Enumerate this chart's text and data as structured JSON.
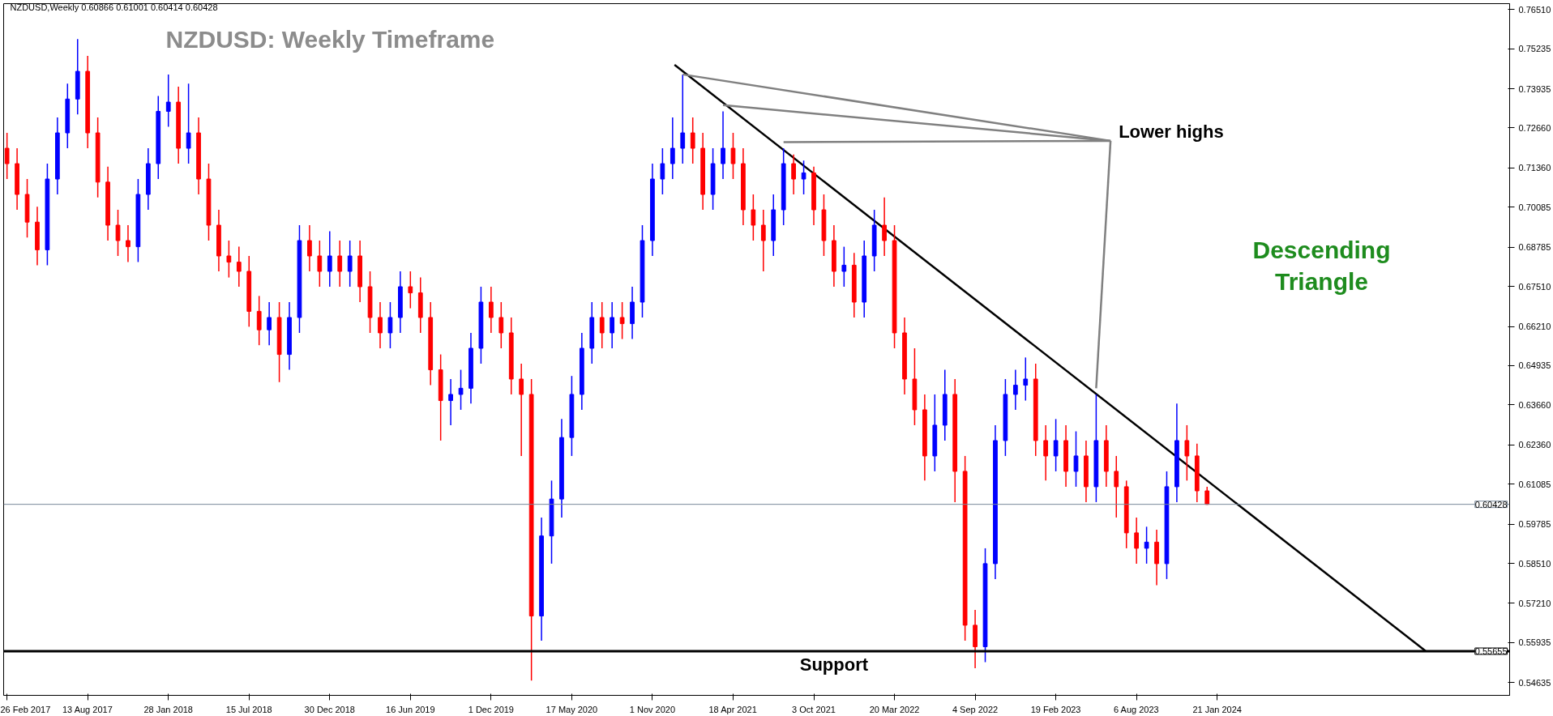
{
  "chart_data": {
    "type": "candlestick",
    "title": "NZDUSD: Weekly Timeframe",
    "subtitle": "NZDUSD,Weekly 0.60866 0.61001 0.60414 0.60428",
    "x": [
      "2017-02-26",
      "2017-03-19",
      "2017-04-09",
      "2017-04-30",
      "2017-05-21",
      "2017-06-11",
      "2017-07-02",
      "2017-07-23",
      "2017-08-13",
      "2017-09-03",
      "2017-09-24",
      "2017-10-15",
      "2017-11-05",
      "2017-11-26",
      "2017-12-17",
      "2018-01-07",
      "2018-01-28",
      "2018-02-18",
      "2018-03-11",
      "2018-04-01",
      "2018-04-22",
      "2018-05-13",
      "2018-06-03",
      "2018-06-24",
      "2018-07-15",
      "2018-08-05",
      "2018-08-26",
      "2018-09-16",
      "2018-10-07",
      "2018-10-28",
      "2018-11-18",
      "2018-12-09",
      "2018-12-30",
      "2019-01-20",
      "2019-02-10",
      "2019-03-03",
      "2019-03-24",
      "2019-04-14",
      "2019-05-05",
      "2019-05-26",
      "2019-06-16",
      "2019-07-07",
      "2019-07-28",
      "2019-08-18",
      "2019-09-08",
      "2019-09-29",
      "2019-10-20",
      "2019-11-10",
      "2019-12-01",
      "2019-12-22",
      "2020-01-12",
      "2020-02-02",
      "2020-02-23",
      "2020-03-15",
      "2020-04-05",
      "2020-04-26",
      "2020-05-17",
      "2020-06-07",
      "2020-06-28",
      "2020-07-19",
      "2020-08-09",
      "2020-08-30",
      "2020-09-20",
      "2020-10-11",
      "2020-11-01",
      "2020-11-22",
      "2020-12-13",
      "2021-01-03",
      "2021-01-24",
      "2021-02-14",
      "2021-03-07",
      "2021-03-28",
      "2021-04-18",
      "2021-05-09",
      "2021-05-30",
      "2021-06-20",
      "2021-07-11",
      "2021-08-01",
      "2021-08-22",
      "2021-09-12",
      "2021-10-03",
      "2021-10-24",
      "2021-11-14",
      "2021-12-05",
      "2021-12-26",
      "2022-01-16",
      "2022-02-06",
      "2022-02-27",
      "2022-03-20",
      "2022-04-10",
      "2022-05-01",
      "2022-05-22",
      "2022-06-12",
      "2022-07-03",
      "2022-07-24",
      "2022-08-14",
      "2022-09-04",
      "2022-09-25",
      "2022-10-16",
      "2022-11-06",
      "2022-11-27",
      "2022-12-18",
      "2023-01-08",
      "2023-01-29",
      "2023-02-19",
      "2023-03-12",
      "2023-04-02",
      "2023-04-23",
      "2023-05-14",
      "2023-06-04",
      "2023-06-25",
      "2023-07-16",
      "2023-08-06",
      "2023-08-27",
      "2023-09-17",
      "2023-10-08",
      "2023-10-29",
      "2023-11-19",
      "2023-12-10",
      "2023-12-31"
    ],
    "ohlc": [
      [
        0.72,
        0.725,
        0.71,
        0.715
      ],
      [
        0.715,
        0.72,
        0.7,
        0.705
      ],
      [
        0.705,
        0.71,
        0.691,
        0.696
      ],
      [
        0.696,
        0.701,
        0.682,
        0.687
      ],
      [
        0.687,
        0.715,
        0.682,
        0.71
      ],
      [
        0.71,
        0.73,
        0.705,
        0.725
      ],
      [
        0.725,
        0.741,
        0.72,
        0.736
      ],
      [
        0.736,
        0.7555,
        0.731,
        0.745
      ],
      [
        0.745,
        0.75,
        0.72,
        0.725
      ],
      [
        0.725,
        0.73,
        0.704,
        0.709
      ],
      [
        0.709,
        0.714,
        0.69,
        0.695
      ],
      [
        0.695,
        0.7,
        0.685,
        0.69
      ],
      [
        0.69,
        0.695,
        0.683,
        0.688
      ],
      [
        0.688,
        0.71,
        0.683,
        0.705
      ],
      [
        0.705,
        0.72,
        0.7,
        0.715
      ],
      [
        0.715,
        0.737,
        0.71,
        0.732
      ],
      [
        0.732,
        0.744,
        0.727,
        0.735
      ],
      [
        0.735,
        0.74,
        0.715,
        0.72
      ],
      [
        0.72,
        0.741,
        0.715,
        0.725
      ],
      [
        0.725,
        0.73,
        0.705,
        0.71
      ],
      [
        0.71,
        0.715,
        0.69,
        0.695
      ],
      [
        0.695,
        0.7,
        0.68,
        0.685
      ],
      [
        0.685,
        0.69,
        0.678,
        0.683
      ],
      [
        0.683,
        0.688,
        0.675,
        0.68
      ],
      [
        0.68,
        0.685,
        0.662,
        0.667
      ],
      [
        0.667,
        0.672,
        0.656,
        0.661
      ],
      [
        0.661,
        0.67,
        0.656,
        0.665
      ],
      [
        0.665,
        0.67,
        0.644,
        0.653
      ],
      [
        0.653,
        0.67,
        0.648,
        0.665
      ],
      [
        0.665,
        0.695,
        0.66,
        0.69
      ],
      [
        0.69,
        0.695,
        0.68,
        0.685
      ],
      [
        0.685,
        0.69,
        0.675,
        0.68
      ],
      [
        0.68,
        0.693,
        0.675,
        0.685
      ],
      [
        0.685,
        0.69,
        0.675,
        0.68
      ],
      [
        0.68,
        0.69,
        0.675,
        0.685
      ],
      [
        0.685,
        0.69,
        0.67,
        0.675
      ],
      [
        0.675,
        0.68,
        0.66,
        0.665
      ],
      [
        0.665,
        0.67,
        0.655,
        0.66
      ],
      [
        0.66,
        0.67,
        0.655,
        0.665
      ],
      [
        0.665,
        0.68,
        0.66,
        0.675
      ],
      [
        0.675,
        0.68,
        0.668,
        0.673
      ],
      [
        0.673,
        0.678,
        0.66,
        0.665
      ],
      [
        0.665,
        0.67,
        0.643,
        0.648
      ],
      [
        0.648,
        0.653,
        0.625,
        0.638
      ],
      [
        0.638,
        0.645,
        0.63,
        0.64
      ],
      [
        0.64,
        0.648,
        0.635,
        0.642
      ],
      [
        0.642,
        0.66,
        0.637,
        0.655
      ],
      [
        0.655,
        0.675,
        0.65,
        0.67
      ],
      [
        0.67,
        0.675,
        0.66,
        0.665
      ],
      [
        0.665,
        0.67,
        0.655,
        0.66
      ],
      [
        0.66,
        0.665,
        0.64,
        0.645
      ],
      [
        0.645,
        0.65,
        0.62,
        0.64
      ],
      [
        0.64,
        0.645,
        0.547,
        0.568
      ],
      [
        0.568,
        0.6,
        0.56,
        0.594
      ],
      [
        0.594,
        0.612,
        0.585,
        0.606
      ],
      [
        0.606,
        0.632,
        0.6,
        0.626
      ],
      [
        0.626,
        0.646,
        0.62,
        0.64
      ],
      [
        0.64,
        0.66,
        0.635,
        0.655
      ],
      [
        0.655,
        0.67,
        0.65,
        0.665
      ],
      [
        0.665,
        0.67,
        0.655,
        0.66
      ],
      [
        0.66,
        0.67,
        0.655,
        0.665
      ],
      [
        0.665,
        0.67,
        0.658,
        0.663
      ],
      [
        0.663,
        0.675,
        0.658,
        0.67
      ],
      [
        0.67,
        0.695,
        0.665,
        0.69
      ],
      [
        0.69,
        0.715,
        0.685,
        0.71
      ],
      [
        0.71,
        0.72,
        0.705,
        0.715
      ],
      [
        0.715,
        0.73,
        0.71,
        0.72
      ],
      [
        0.72,
        0.744,
        0.715,
        0.725
      ],
      [
        0.725,
        0.73,
        0.715,
        0.72
      ],
      [
        0.72,
        0.725,
        0.7,
        0.705
      ],
      [
        0.705,
        0.72,
        0.7,
        0.715
      ],
      [
        0.715,
        0.732,
        0.71,
        0.72
      ],
      [
        0.72,
        0.725,
        0.71,
        0.715
      ],
      [
        0.715,
        0.72,
        0.695,
        0.7
      ],
      [
        0.7,
        0.705,
        0.69,
        0.695
      ],
      [
        0.695,
        0.7,
        0.68,
        0.69
      ],
      [
        0.69,
        0.705,
        0.685,
        0.7
      ],
      [
        0.7,
        0.72,
        0.695,
        0.715
      ],
      [
        0.715,
        0.718,
        0.705,
        0.71
      ],
      [
        0.71,
        0.716,
        0.705,
        0.712
      ],
      [
        0.712,
        0.714,
        0.695,
        0.7
      ],
      [
        0.7,
        0.705,
        0.685,
        0.69
      ],
      [
        0.69,
        0.695,
        0.675,
        0.68
      ],
      [
        0.68,
        0.688,
        0.675,
        0.682
      ],
      [
        0.682,
        0.686,
        0.665,
        0.67
      ],
      [
        0.67,
        0.69,
        0.665,
        0.685
      ],
      [
        0.685,
        0.7,
        0.68,
        0.695
      ],
      [
        0.695,
        0.704,
        0.685,
        0.69
      ],
      [
        0.69,
        0.695,
        0.655,
        0.66
      ],
      [
        0.66,
        0.665,
        0.64,
        0.645
      ],
      [
        0.645,
        0.655,
        0.63,
        0.635
      ],
      [
        0.635,
        0.64,
        0.612,
        0.62
      ],
      [
        0.62,
        0.64,
        0.615,
        0.63
      ],
      [
        0.63,
        0.648,
        0.625,
        0.64
      ],
      [
        0.64,
        0.645,
        0.605,
        0.615
      ],
      [
        0.615,
        0.62,
        0.56,
        0.565
      ],
      [
        0.565,
        0.57,
        0.551,
        0.558
      ],
      [
        0.558,
        0.59,
        0.553,
        0.585
      ],
      [
        0.585,
        0.63,
        0.58,
        0.625
      ],
      [
        0.625,
        0.645,
        0.62,
        0.64
      ],
      [
        0.64,
        0.648,
        0.635,
        0.643
      ],
      [
        0.643,
        0.652,
        0.638,
        0.645
      ],
      [
        0.645,
        0.65,
        0.62,
        0.625
      ],
      [
        0.625,
        0.63,
        0.612,
        0.62
      ],
      [
        0.62,
        0.632,
        0.615,
        0.625
      ],
      [
        0.625,
        0.63,
        0.61,
        0.615
      ],
      [
        0.615,
        0.628,
        0.61,
        0.62
      ],
      [
        0.62,
        0.625,
        0.605,
        0.61
      ],
      [
        0.61,
        0.64,
        0.605,
        0.625
      ],
      [
        0.625,
        0.63,
        0.61,
        0.615
      ],
      [
        0.615,
        0.62,
        0.6,
        0.61
      ],
      [
        0.61,
        0.612,
        0.59,
        0.595
      ],
      [
        0.595,
        0.6,
        0.585,
        0.59
      ],
      [
        0.59,
        0.597,
        0.585,
        0.592
      ],
      [
        0.592,
        0.596,
        0.578,
        0.585
      ],
      [
        0.585,
        0.615,
        0.58,
        0.61
      ],
      [
        0.61,
        0.637,
        0.605,
        0.625
      ],
      [
        0.625,
        0.63,
        0.612,
        0.62
      ],
      [
        0.62,
        0.624,
        0.605,
        0.60866
      ],
      [
        0.60866,
        0.61001,
        0.60414,
        0.60428
      ]
    ],
    "series": [
      {
        "type": "line",
        "x": [
          "2020-12-17",
          "2025-03-30"
        ],
        "values": [
          0.7471,
          0.5566
        ],
        "color": "#000000"
      }
    ],
    "xlim": [
      "2017-02-19",
      "2025-09-21"
    ],
    "ylim": [
      0.5422,
      0.767
    ],
    "xticks": [
      {
        "value": "2017-02-26",
        "label": "26 Feb 2017"
      },
      {
        "value": "2017-08-13",
        "label": "13 Aug 2017"
      },
      {
        "value": "2018-01-28",
        "label": "28 Jan 2018"
      },
      {
        "value": "2018-07-15",
        "label": "15 Jul 2018"
      },
      {
        "value": "2018-12-30",
        "label": "30 Dec 2018"
      },
      {
        "value": "2019-06-16",
        "label": "16 Jun 2019"
      },
      {
        "value": "2019-12-01",
        "label": "1 Dec 2019"
      },
      {
        "value": "2020-05-17",
        "label": "17 May 2020"
      },
      {
        "value": "2020-11-01",
        "label": "1 Nov 2020"
      },
      {
        "value": "2021-04-18",
        "label": "18 Apr 2021"
      },
      {
        "value": "2021-10-03",
        "label": "3 Oct 2021"
      },
      {
        "value": "2022-03-20",
        "label": "20 Mar 2022"
      },
      {
        "value": "2022-09-04",
        "label": "4 Sep 2022"
      },
      {
        "value": "2023-02-19",
        "label": "19 Feb 2023"
      },
      {
        "value": "2023-08-06",
        "label": "6 Aug 2023"
      },
      {
        "value": "2024-01-21",
        "label": "21 Jan 2024"
      }
    ],
    "yticks": [
      0.54635,
      {
        "value": 0.55935,
        "label": "0.55935"
      },
      {
        "value": 0.5721,
        "label": "0.57210"
      },
      {
        "value": 0.5851,
        "label": "0.58510"
      },
      0.59785,
      0.61085,
      {
        "value": 0.6236,
        "label": "0.62360"
      },
      {
        "value": 0.6366,
        "label": "0.63660"
      },
      0.64935,
      {
        "value": 0.6621,
        "label": "0.66210"
      },
      {
        "value": 0.6751,
        "label": "0.67510"
      },
      0.68785,
      0.70085,
      {
        "value": 0.7136,
        "label": "0.71360"
      },
      {
        "value": 0.7266,
        "label": "0.72660"
      },
      0.73935,
      0.75235,
      {
        "value": 0.7651,
        "label": "0.76510"
      }
    ],
    "ref_lines": [
      {
        "axis": "y",
        "value": 0.60428,
        "label": "0.60428",
        "color": "#778899"
      },
      {
        "axis": "y",
        "value": 0.55655,
        "label": "0.55655",
        "color": "#000000"
      }
    ],
    "annotations": [
      {
        "text": "Lower highs",
        "x": "2021-01-03",
        "y": 0.744
      },
      "Descending\nTriangle",
      {
        "text": "Support",
        "x": "2021-11-14",
        "y": 0.55655
      }
    ]
  }
}
